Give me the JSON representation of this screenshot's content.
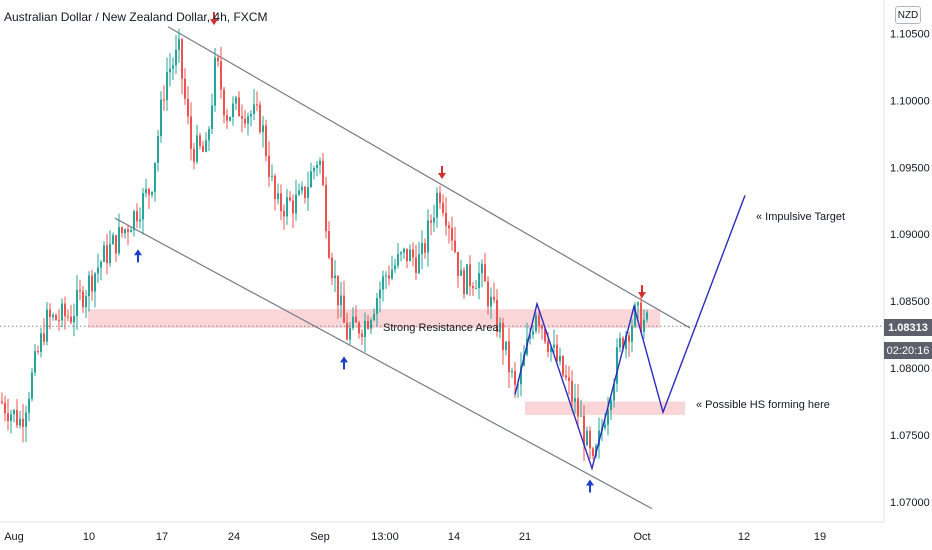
{
  "header": {
    "title": "Australian Dollar / New Zealand Dollar, 4h, FXCM",
    "currency": "NZD"
  },
  "price_scale": {
    "current_price": "1.08313",
    "countdown": "02:20:16"
  },
  "colors": {
    "bull": "#26a69a",
    "bear": "#ef5350",
    "trendline": "#787b86",
    "pattern": "#2d2bbd",
    "zone": "#f8c8cc",
    "arrow_down": "#d32f2f",
    "arrow_up": "#1e40c8"
  },
  "annotations": {
    "resistance": "Strong Resistance Area",
    "target": "«  Impulsive Target",
    "hs": "« Possible HS forming here"
  },
  "chart_data": {
    "type": "candlestick",
    "instrument": "Australian Dollar / New Zealand Dollar",
    "timeframe": "4h",
    "source": "FXCM",
    "y_axis": {
      "range": [
        1.0685,
        1.1075
      ],
      "ticks": [
        "1.10500",
        "1.10000",
        "1.09500",
        "1.09000",
        "1.08500",
        "1.08000",
        "1.07500",
        "1.07000"
      ]
    },
    "x_axis": {
      "ticks": [
        "Aug",
        "10",
        "17",
        "24",
        "Sep",
        "13:00",
        "14",
        "21",
        "Oct",
        "12",
        "19"
      ]
    },
    "current_price": 1.08313,
    "price_path": [
      {
        "x": 0,
        "y": 1.0775
      },
      {
        "x": 20,
        "y": 1.076
      },
      {
        "x": 45,
        "y": 1.0835
      },
      {
        "x": 70,
        "y": 1.084
      },
      {
        "x": 100,
        "y": 1.088
      },
      {
        "x": 125,
        "y": 1.0905
      },
      {
        "x": 150,
        "y": 1.0935
      },
      {
        "x": 165,
        "y": 1.102
      },
      {
        "x": 178,
        "y": 1.1035
      },
      {
        "x": 190,
        "y": 1.0965
      },
      {
        "x": 205,
        "y": 1.096
      },
      {
        "x": 215,
        "y": 1.103
      },
      {
        "x": 225,
        "y": 1.099
      },
      {
        "x": 240,
        "y": 1.0995
      },
      {
        "x": 260,
        "y": 1.0985
      },
      {
        "x": 275,
        "y": 1.092
      },
      {
        "x": 300,
        "y": 1.0925
      },
      {
        "x": 318,
        "y": 1.096
      },
      {
        "x": 330,
        "y": 1.088
      },
      {
        "x": 345,
        "y": 1.0825
      },
      {
        "x": 365,
        "y": 1.0835
      },
      {
        "x": 385,
        "y": 1.087
      },
      {
        "x": 405,
        "y": 1.0885
      },
      {
        "x": 420,
        "y": 1.088
      },
      {
        "x": 438,
        "y": 1.0935
      },
      {
        "x": 450,
        "y": 1.0905
      },
      {
        "x": 460,
        "y": 1.0865
      },
      {
        "x": 480,
        "y": 1.087
      },
      {
        "x": 500,
        "y": 1.0825
      },
      {
        "x": 515,
        "y": 1.078
      },
      {
        "x": 535,
        "y": 1.0845
      },
      {
        "x": 550,
        "y": 1.0815
      },
      {
        "x": 565,
        "y": 1.079
      },
      {
        "x": 580,
        "y": 1.076
      },
      {
        "x": 592,
        "y": 1.0725
      },
      {
        "x": 605,
        "y": 1.077
      },
      {
        "x": 620,
        "y": 1.082
      },
      {
        "x": 635,
        "y": 1.084
      },
      {
        "x": 648,
        "y": 1.0831
      }
    ],
    "trendlines": [
      {
        "x1": 168,
        "y1": 1.1055,
        "x2": 690,
        "y2": 1.083
      },
      {
        "x1": 115,
        "y1": 1.0912,
        "x2": 652,
        "y2": 1.0695
      }
    ],
    "zones": [
      {
        "x1": 88,
        "x2": 660,
        "y_top": 1.0844,
        "y_bottom": 1.083,
        "label": "Strong Resistance Area"
      },
      {
        "x1": 525,
        "x2": 685,
        "y_top": 1.0775,
        "y_bottom": 1.0765
      }
    ],
    "projection": [
      {
        "x": 515,
        "y": 1.078
      },
      {
        "x": 537,
        "y": 1.0848
      },
      {
        "x": 592,
        "y": 1.0725
      },
      {
        "x": 634,
        "y": 1.0846
      },
      {
        "x": 663,
        "y": 1.0767
      },
      {
        "x": 745,
        "y": 1.0929
      }
    ],
    "arrows_down": [
      {
        "x": 214,
        "y": 1.106
      },
      {
        "x": 442,
        "y": 1.0945
      },
      {
        "x": 642,
        "y": 1.0856
      }
    ],
    "arrows_up": [
      {
        "x": 138,
        "y": 1.0885
      },
      {
        "x": 344,
        "y": 1.0805
      },
      {
        "x": 590,
        "y": 1.0713
      }
    ],
    "annotations": [
      {
        "text": "Strong Resistance Area",
        "near": "resistance zone"
      },
      {
        "text": "Impulsive Target",
        "near": "projection end"
      },
      {
        "text": "Possible HS forming here",
        "near": "neckline zone"
      }
    ]
  }
}
